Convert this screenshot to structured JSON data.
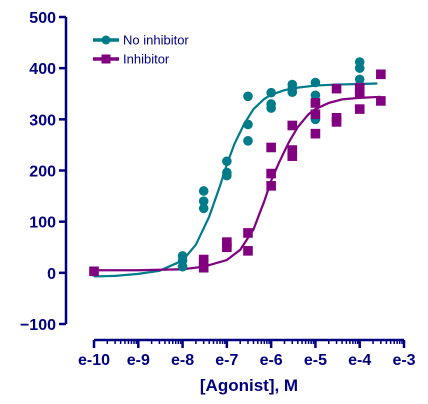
{
  "chart_data": {
    "type": "scatter",
    "title": "",
    "xlabel": "[Agonist], M",
    "ylabel": "",
    "x_scale": "log10",
    "xlim": [
      1e-10,
      0.001
    ],
    "ylim": [
      -100,
      500
    ],
    "x_ticks": [
      1e-10,
      1e-09,
      1e-08,
      1e-07,
      1e-06,
      1e-05,
      0.0001,
      0.001
    ],
    "x_tick_labels": [
      "e-10",
      "e-9",
      "e-8",
      "e-7",
      "e-6",
      "e-5",
      "e-4",
      "e-3"
    ],
    "y_ticks": [
      -100,
      0,
      100,
      200,
      300,
      400,
      500
    ],
    "y_tick_labels": [
      "−100",
      "0",
      "100",
      "200",
      "300",
      "400",
      "500"
    ],
    "legend_position": "top-left",
    "series": [
      {
        "name": "No inhibitor",
        "color": "#007b8a",
        "marker": "circle",
        "points": [
          [
            1e-10,
            2
          ],
          [
            1e-08,
            33
          ],
          [
            1e-08,
            24
          ],
          [
            1e-08,
            12
          ],
          [
            3e-08,
            160
          ],
          [
            3e-08,
            140
          ],
          [
            3e-08,
            126
          ],
          [
            1e-07,
            218
          ],
          [
            1e-07,
            196
          ],
          [
            1e-07,
            190
          ],
          [
            3e-07,
            345
          ],
          [
            3e-07,
            290
          ],
          [
            3e-07,
            258
          ],
          [
            1e-06,
            352
          ],
          [
            1e-06,
            330
          ],
          [
            1e-06,
            322
          ],
          [
            3e-06,
            368
          ],
          [
            3e-06,
            360
          ],
          [
            3e-06,
            353
          ],
          [
            1e-05,
            372
          ],
          [
            1e-05,
            347
          ],
          [
            1e-05,
            300
          ],
          [
            0.0001,
            412
          ],
          [
            0.0001,
            400
          ],
          [
            0.0001,
            378
          ]
        ],
        "curve": [
          [
            1e-10,
            -7
          ],
          [
            3e-10,
            -6
          ],
          [
            1e-09,
            -2
          ],
          [
            3e-09,
            4
          ],
          [
            1e-08,
            24
          ],
          [
            2e-08,
            55
          ],
          [
            4e-08,
            110
          ],
          [
            7e-08,
            170
          ],
          [
            1e-07,
            212
          ],
          [
            1.5e-07,
            253
          ],
          [
            2.5e-07,
            292
          ],
          [
            4e-07,
            320
          ],
          [
            7e-07,
            340
          ],
          [
            1e-06,
            348
          ],
          [
            2e-06,
            357
          ],
          [
            4e-06,
            362
          ],
          [
            1e-05,
            366
          ],
          [
            3e-05,
            368
          ],
          [
            0.0001,
            369
          ],
          [
            0.00025,
            370
          ]
        ]
      },
      {
        "name": "Inhibitor",
        "color": "#800080",
        "marker": "square",
        "points": [
          [
            1e-10,
            3
          ],
          [
            3e-08,
            26
          ],
          [
            3e-08,
            20
          ],
          [
            3e-08,
            10
          ],
          [
            1e-07,
            60
          ],
          [
            1e-07,
            50
          ],
          [
            3e-07,
            78
          ],
          [
            3e-07,
            43
          ],
          [
            1e-06,
            245
          ],
          [
            1e-06,
            194
          ],
          [
            1e-06,
            170
          ],
          [
            3e-06,
            288
          ],
          [
            3e-06,
            240
          ],
          [
            3e-06,
            228
          ],
          [
            1e-05,
            332
          ],
          [
            1e-05,
            310
          ],
          [
            1e-05,
            272
          ],
          [
            3e-05,
            360
          ],
          [
            3e-05,
            303
          ],
          [
            3e-05,
            295
          ],
          [
            0.0001,
            362
          ],
          [
            0.0001,
            350
          ],
          [
            0.0001,
            320
          ],
          [
            0.0003,
            388
          ],
          [
            0.0003,
            336
          ]
        ],
        "curve": [
          [
            1e-10,
            5
          ],
          [
            1e-09,
            5
          ],
          [
            1e-08,
            7
          ],
          [
            3e-08,
            12
          ],
          [
            1e-07,
            25
          ],
          [
            2e-07,
            45
          ],
          [
            4e-07,
            85
          ],
          [
            7e-07,
            140
          ],
          [
            1e-06,
            180
          ],
          [
            1.5e-06,
            215
          ],
          [
            2.5e-06,
            255
          ],
          [
            4e-06,
            285
          ],
          [
            7e-06,
            310
          ],
          [
            1e-05,
            320
          ],
          [
            2e-05,
            332
          ],
          [
            4e-05,
            339
          ],
          [
            0.0001,
            342
          ],
          [
            0.0003,
            344
          ]
        ]
      }
    ]
  }
}
